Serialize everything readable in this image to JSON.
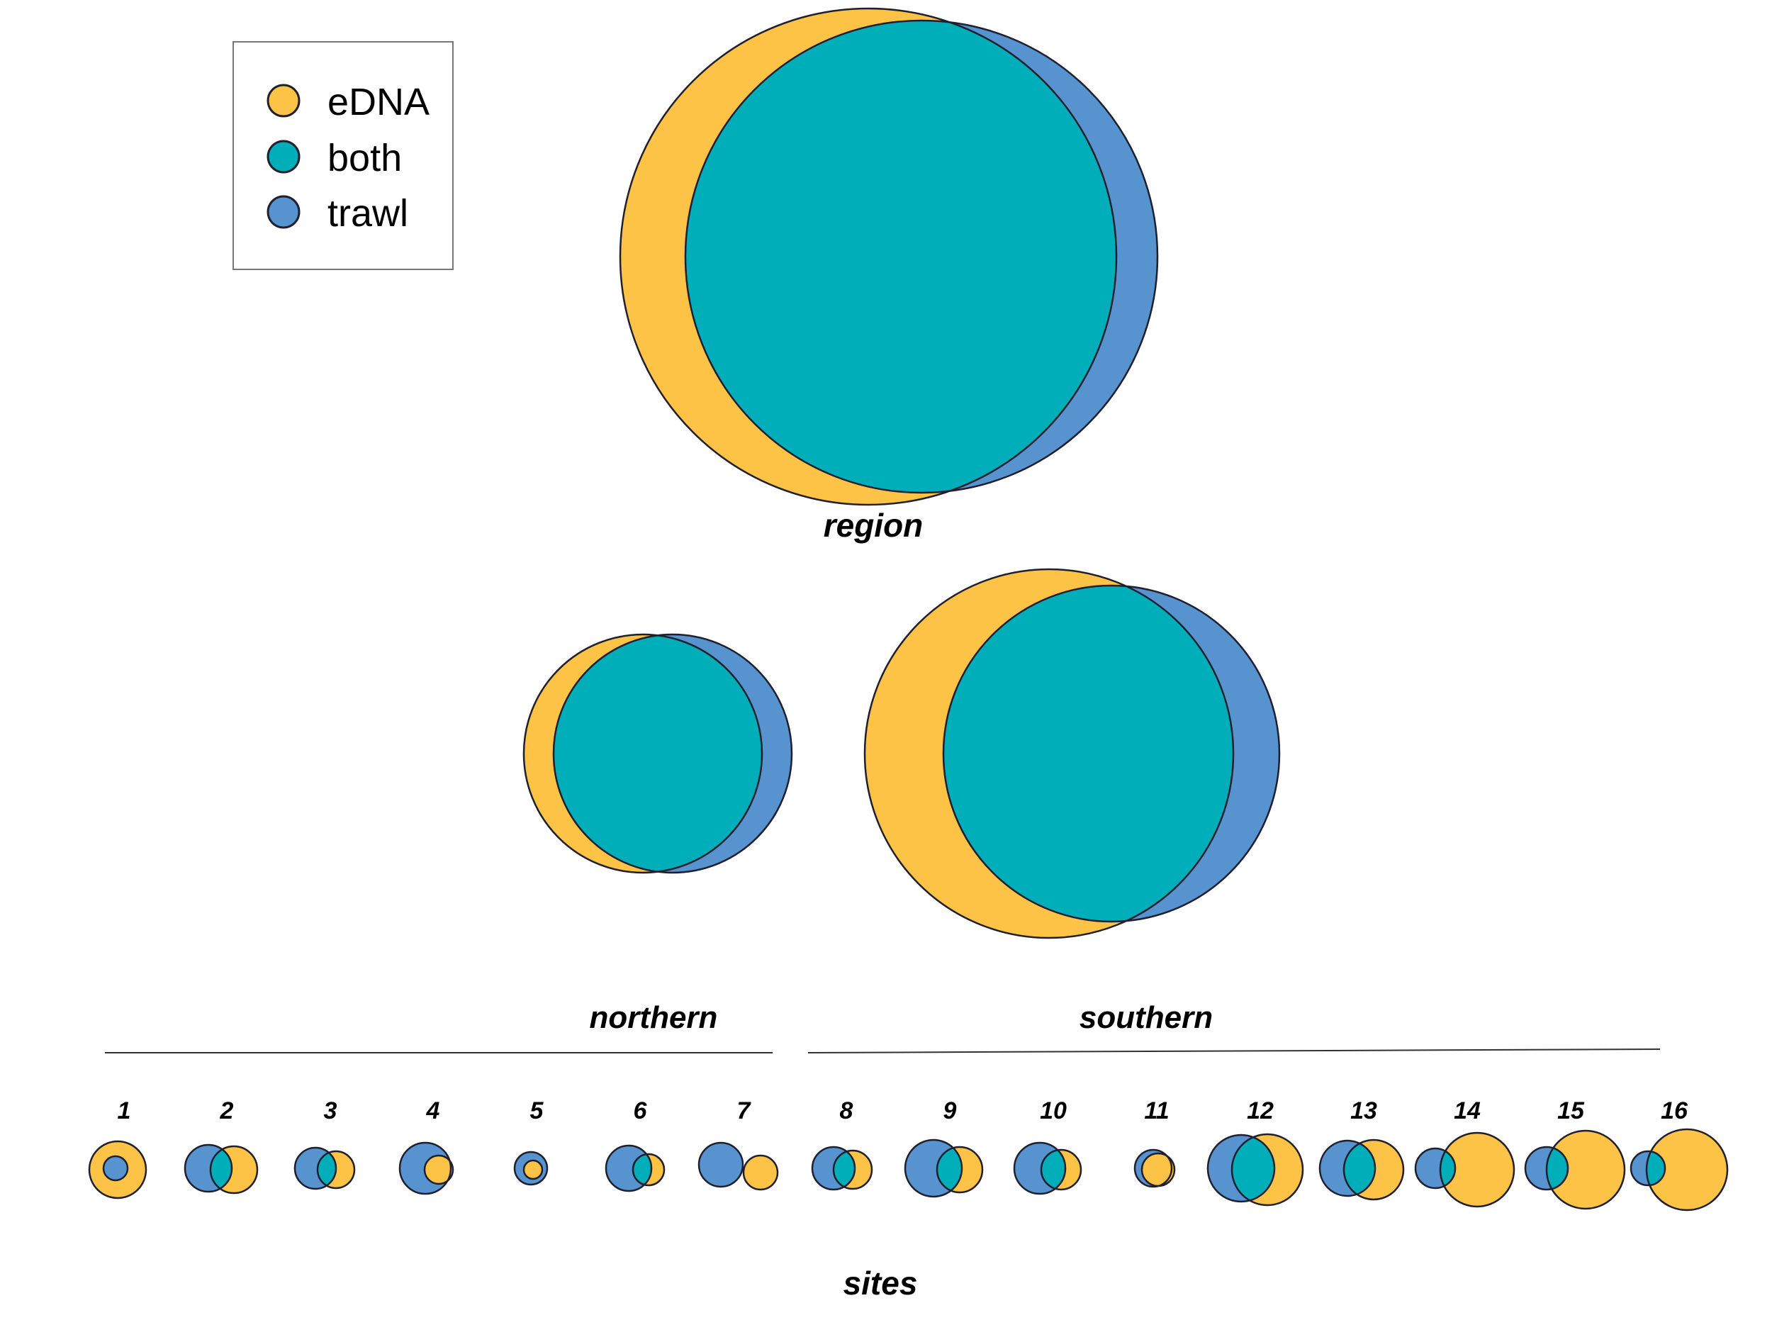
{
  "colors": {
    "edna": "#FCC346",
    "both": "#00AEBA",
    "trawl": "#5693CF",
    "stroke": "#1F1F2E"
  },
  "legend": {
    "items": [
      {
        "label": "eDNA",
        "color": "#FCC346"
      },
      {
        "label": "both",
        "color": "#00AEBA"
      },
      {
        "label": "trawl",
        "color": "#5693CF"
      }
    ]
  },
  "labels": {
    "region": "region",
    "northern": "northern",
    "southern": "southern",
    "sites": "sites"
  },
  "sites": [
    "1",
    "2",
    "3",
    "4",
    "5",
    "6",
    "7",
    "8",
    "9",
    "10",
    "11",
    "12",
    "13",
    "14",
    "15",
    "16"
  ]
}
